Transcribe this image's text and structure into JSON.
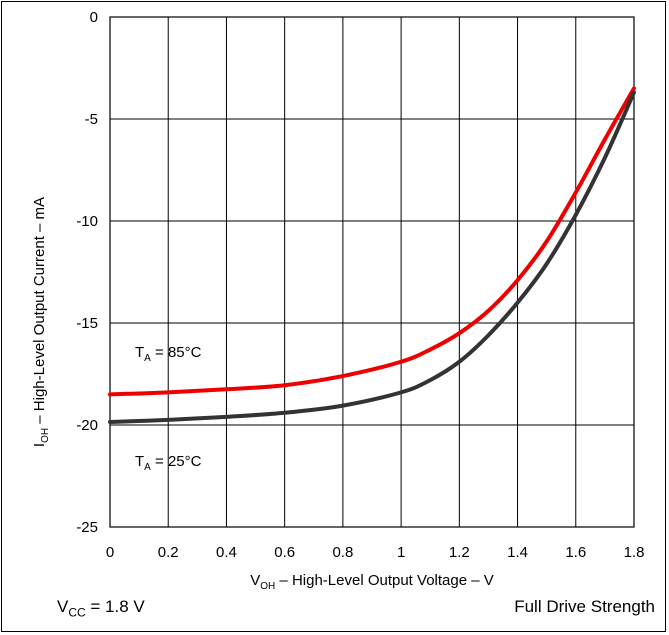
{
  "chart_data": {
    "type": "line",
    "xlabel": {
      "main": "V",
      "sub": "OH",
      "rest": " – High-Level Output Voltage – V"
    },
    "ylabel": {
      "main": "I",
      "sub": "OH",
      "rest": " – High-Level Output Current – mA"
    },
    "xlim": [
      0,
      1.8
    ],
    "ylim": [
      -25,
      0
    ],
    "x_ticks": [
      "0",
      "0.2",
      "0.4",
      "0.6",
      "0.8",
      "1",
      "1.2",
      "1.4",
      "1.6",
      "1.8"
    ],
    "y_ticks": [
      "0",
      "-5",
      "-10",
      "-15",
      "-20",
      "-25"
    ],
    "grid": true,
    "series": [
      {
        "name": {
          "main": "T",
          "sub": "A",
          "rest": " = 85°C"
        },
        "color": "#ee0000",
        "x": [
          0,
          0.2,
          0.4,
          0.6,
          0.8,
          1.0,
          1.1,
          1.2,
          1.3,
          1.4,
          1.5,
          1.6,
          1.7,
          1.8
        ],
        "y": [
          -18.5,
          -18.4,
          -18.25,
          -18.05,
          -17.6,
          -16.9,
          -16.3,
          -15.5,
          -14.4,
          -12.9,
          -11.0,
          -8.6,
          -6.0,
          -3.5
        ]
      },
      {
        "name": {
          "main": "T",
          "sub": "A",
          "rest": " = 25°C"
        },
        "color": "#333333",
        "x": [
          0,
          0.2,
          0.4,
          0.6,
          0.8,
          1.0,
          1.1,
          1.2,
          1.3,
          1.4,
          1.5,
          1.6,
          1.7,
          1.8
        ],
        "y": [
          -19.85,
          -19.75,
          -19.6,
          -19.4,
          -19.05,
          -18.4,
          -17.8,
          -16.9,
          -15.6,
          -14.0,
          -12.1,
          -9.7,
          -6.9,
          -3.7
        ]
      }
    ]
  },
  "footer": {
    "left": {
      "main": "V",
      "sub": "CC",
      "rest": " = 1.8 V"
    },
    "right": "Full Drive Strength"
  }
}
